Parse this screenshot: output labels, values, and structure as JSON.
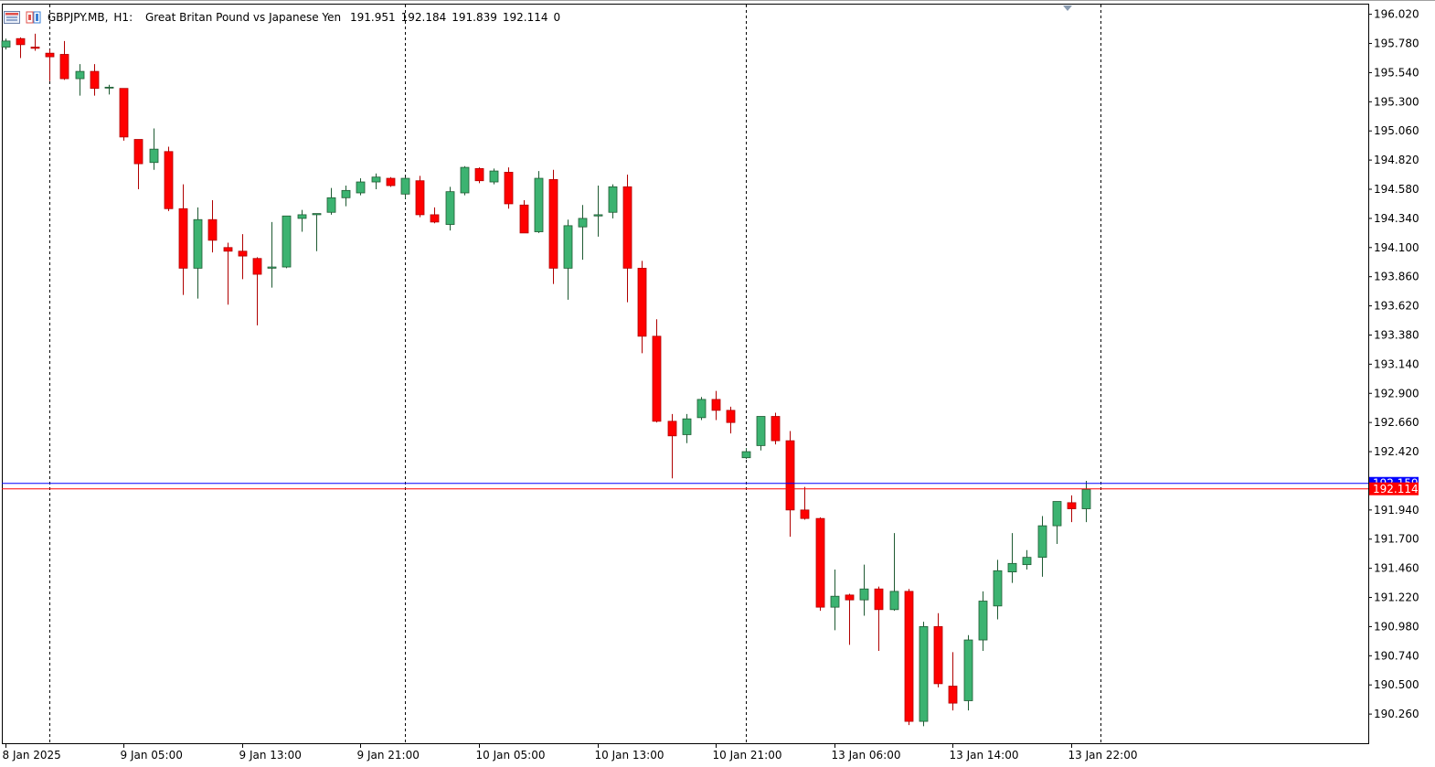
{
  "header": {
    "symbol": "GBPJPY.MB,",
    "timeframe": "H1:",
    "description": "Great Britan Pound vs Japanese Yen",
    "open": "191.951",
    "high": "192.184",
    "low": "191.839",
    "close": "192.114",
    "extra": "0",
    "icons": [
      "chart-window-icon",
      "one-click-trading-icon"
    ]
  },
  "colors": {
    "bull": "#3cb371",
    "bear": "#ff0000",
    "wick": "#000000",
    "ask_line": "#0000ff",
    "bid_line": "#ff0000",
    "grid": "#000000",
    "background": "#ffffff"
  },
  "chart_data": {
    "type": "candlestick",
    "symbol": "GBPJPY.MB",
    "timeframe": "H1",
    "ylim": [
      190.02,
      196.1
    ],
    "yticks": [
      196.02,
      195.78,
      195.54,
      195.3,
      195.06,
      194.82,
      194.58,
      194.34,
      194.1,
      193.86,
      193.62,
      193.38,
      193.14,
      192.9,
      192.66,
      192.42,
      191.94,
      191.7,
      191.46,
      191.22,
      190.98,
      190.74,
      190.5,
      190.26
    ],
    "x_labels": [
      "8 Jan 2025",
      "9 Jan 05:00",
      "9 Jan 13:00",
      "9 Jan 21:00",
      "10 Jan 05:00",
      "10 Jan 13:00",
      "10 Jan 21:00",
      "13 Jan 06:00",
      "13 Jan 14:00",
      "13 Jan 22:00"
    ],
    "x_label_bar_index": [
      0,
      8,
      16,
      24,
      32,
      40,
      48,
      56,
      64,
      72
    ],
    "day_separators_bar_index": [
      3,
      27,
      50,
      74
    ],
    "ask": {
      "value": 192.159,
      "label": "192.159"
    },
    "bid": {
      "value": 192.114,
      "label": "192.114"
    },
    "candles": [
      {
        "o": 195.75,
        "h": 195.82,
        "l": 195.73,
        "c": 195.8
      },
      {
        "o": 195.82,
        "h": 195.83,
        "l": 195.66,
        "c": 195.77
      },
      {
        "o": 195.75,
        "h": 195.86,
        "l": 195.72,
        "c": 195.74
      },
      {
        "o": 195.7,
        "h": 195.73,
        "l": 195.47,
        "c": 195.67
      },
      {
        "o": 195.69,
        "h": 195.8,
        "l": 195.48,
        "c": 195.49
      },
      {
        "o": 195.49,
        "h": 195.61,
        "l": 195.35,
        "c": 195.55
      },
      {
        "o": 195.55,
        "h": 195.61,
        "l": 195.35,
        "c": 195.41
      },
      {
        "o": 195.42,
        "h": 195.44,
        "l": 195.36,
        "c": 195.42
      },
      {
        "o": 195.41,
        "h": 195.41,
        "l": 194.98,
        "c": 195.01
      },
      {
        "o": 194.99,
        "h": 194.99,
        "l": 194.58,
        "c": 194.79
      },
      {
        "o": 194.8,
        "h": 195.08,
        "l": 194.74,
        "c": 194.91
      },
      {
        "o": 194.89,
        "h": 194.93,
        "l": 194.4,
        "c": 194.42
      },
      {
        "o": 194.42,
        "h": 194.62,
        "l": 193.71,
        "c": 193.93
      },
      {
        "o": 193.93,
        "h": 194.43,
        "l": 193.68,
        "c": 194.33
      },
      {
        "o": 194.33,
        "h": 194.49,
        "l": 194.06,
        "c": 194.16
      },
      {
        "o": 194.1,
        "h": 194.14,
        "l": 193.63,
        "c": 194.07
      },
      {
        "o": 194.07,
        "h": 194.21,
        "l": 193.84,
        "c": 194.03
      },
      {
        "o": 194.01,
        "h": 194.02,
        "l": 193.46,
        "c": 193.88
      },
      {
        "o": 193.93,
        "h": 194.31,
        "l": 193.77,
        "c": 193.94
      },
      {
        "o": 193.94,
        "h": 194.36,
        "l": 193.93,
        "c": 194.36
      },
      {
        "o": 194.34,
        "h": 194.41,
        "l": 194.23,
        "c": 194.37
      },
      {
        "o": 194.37,
        "h": 194.37,
        "l": 194.07,
        "c": 194.38
      },
      {
        "o": 194.39,
        "h": 194.59,
        "l": 194.37,
        "c": 194.51
      },
      {
        "o": 194.51,
        "h": 194.61,
        "l": 194.44,
        "c": 194.57
      },
      {
        "o": 194.55,
        "h": 194.67,
        "l": 194.53,
        "c": 194.64
      },
      {
        "o": 194.64,
        "h": 194.71,
        "l": 194.58,
        "c": 194.68
      },
      {
        "o": 194.67,
        "h": 194.68,
        "l": 194.6,
        "c": 194.61
      },
      {
        "o": 194.54,
        "h": 194.68,
        "l": 194.5,
        "c": 194.67
      },
      {
        "o": 194.65,
        "h": 194.69,
        "l": 194.35,
        "c": 194.37
      },
      {
        "o": 194.37,
        "h": 194.43,
        "l": 194.3,
        "c": 194.31
      },
      {
        "o": 194.29,
        "h": 194.6,
        "l": 194.24,
        "c": 194.56
      },
      {
        "o": 194.55,
        "h": 194.77,
        "l": 194.53,
        "c": 194.76
      },
      {
        "o": 194.75,
        "h": 194.76,
        "l": 194.63,
        "c": 194.65
      },
      {
        "o": 194.64,
        "h": 194.75,
        "l": 194.62,
        "c": 194.73
      },
      {
        "o": 194.72,
        "h": 194.76,
        "l": 194.42,
        "c": 194.46
      },
      {
        "o": 194.45,
        "h": 194.49,
        "l": 194.22,
        "c": 194.22
      },
      {
        "o": 194.23,
        "h": 194.73,
        "l": 194.22,
        "c": 194.67
      },
      {
        "o": 194.66,
        "h": 194.74,
        "l": 193.8,
        "c": 193.93
      },
      {
        "o": 193.93,
        "h": 194.33,
        "l": 193.67,
        "c": 194.28
      },
      {
        "o": 194.27,
        "h": 194.45,
        "l": 194.0,
        "c": 194.34
      },
      {
        "o": 194.36,
        "h": 194.61,
        "l": 194.19,
        "c": 194.37
      },
      {
        "o": 194.39,
        "h": 194.62,
        "l": 194.34,
        "c": 194.6
      },
      {
        "o": 194.6,
        "h": 194.7,
        "l": 193.65,
        "c": 193.93
      },
      {
        "o": 193.93,
        "h": 193.99,
        "l": 193.23,
        "c": 193.37
      },
      {
        "o": 193.37,
        "h": 193.51,
        "l": 192.66,
        "c": 192.67
      },
      {
        "o": 192.67,
        "h": 192.73,
        "l": 192.2,
        "c": 192.55
      },
      {
        "o": 192.56,
        "h": 192.73,
        "l": 192.49,
        "c": 192.69
      },
      {
        "o": 192.7,
        "h": 192.87,
        "l": 192.68,
        "c": 192.85
      },
      {
        "o": 192.85,
        "h": 192.92,
        "l": 192.68,
        "c": 192.76
      },
      {
        "o": 192.76,
        "h": 192.79,
        "l": 192.57,
        "c": 192.66
      },
      {
        "o": 192.37,
        "h": 192.45,
        "l": 192.36,
        "c": 192.42
      },
      {
        "o": 192.47,
        "h": 192.71,
        "l": 192.43,
        "c": 192.71
      },
      {
        "o": 192.71,
        "h": 192.74,
        "l": 192.48,
        "c": 192.51
      },
      {
        "o": 192.51,
        "h": 192.59,
        "l": 191.72,
        "c": 191.94
      },
      {
        "o": 191.94,
        "h": 192.13,
        "l": 191.86,
        "c": 191.87
      },
      {
        "o": 191.87,
        "h": 191.88,
        "l": 191.11,
        "c": 191.14
      },
      {
        "o": 191.14,
        "h": 191.45,
        "l": 190.95,
        "c": 191.23
      },
      {
        "o": 191.24,
        "h": 191.25,
        "l": 190.83,
        "c": 191.2
      },
      {
        "o": 191.2,
        "h": 191.49,
        "l": 191.07,
        "c": 191.29
      },
      {
        "o": 191.29,
        "h": 191.31,
        "l": 190.78,
        "c": 191.12
      },
      {
        "o": 191.12,
        "h": 191.75,
        "l": 191.11,
        "c": 191.27
      },
      {
        "o": 191.27,
        "h": 191.29,
        "l": 190.17,
        "c": 190.2
      },
      {
        "o": 190.2,
        "h": 191.02,
        "l": 190.16,
        "c": 190.98
      },
      {
        "o": 190.98,
        "h": 191.09,
        "l": 190.48,
        "c": 190.51
      },
      {
        "o": 190.49,
        "h": 190.77,
        "l": 190.29,
        "c": 190.35
      },
      {
        "o": 190.37,
        "h": 190.91,
        "l": 190.29,
        "c": 190.87
      },
      {
        "o": 190.87,
        "h": 191.27,
        "l": 190.78,
        "c": 191.19
      },
      {
        "o": 191.15,
        "h": 191.53,
        "l": 191.04,
        "c": 191.44
      },
      {
        "o": 191.43,
        "h": 191.75,
        "l": 191.34,
        "c": 191.5
      },
      {
        "o": 191.49,
        "h": 191.61,
        "l": 191.45,
        "c": 191.55
      },
      {
        "o": 191.55,
        "h": 191.89,
        "l": 191.39,
        "c": 191.81
      },
      {
        "o": 191.81,
        "h": 192.0,
        "l": 191.66,
        "c": 192.01
      },
      {
        "o": 192.0,
        "h": 192.06,
        "l": 191.84,
        "c": 191.95
      },
      {
        "o": 191.95,
        "h": 192.18,
        "l": 191.84,
        "c": 192.11
      }
    ]
  }
}
